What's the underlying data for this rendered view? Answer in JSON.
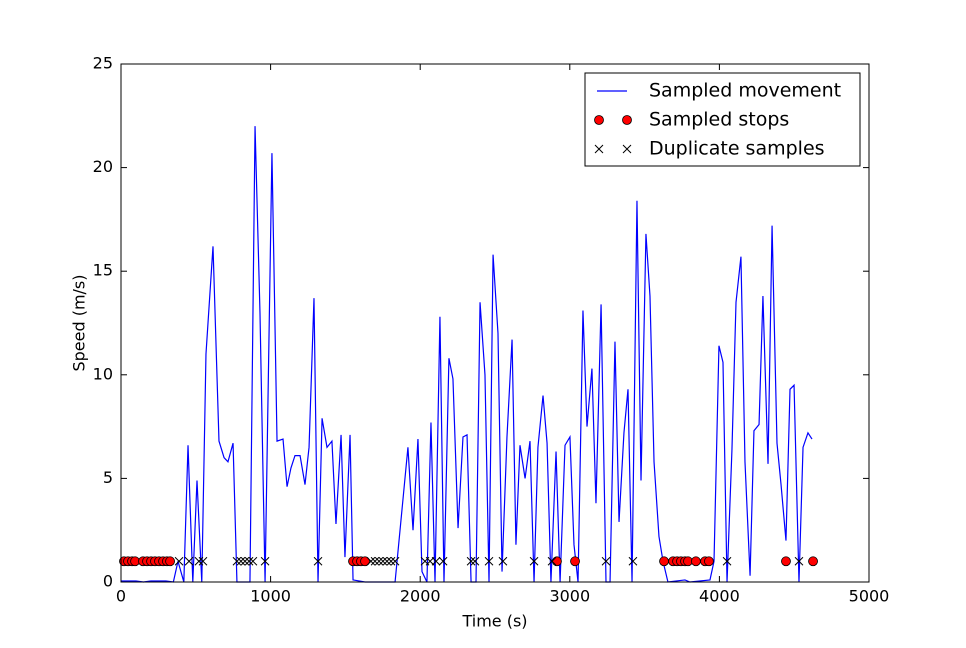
{
  "chart_data": {
    "type": "line",
    "xlabel": "Time (s)",
    "ylabel": "Speed (m/s)",
    "xlim": [
      0,
      5000
    ],
    "xticks": [
      0,
      1000,
      2000,
      3000,
      4000,
      5000
    ],
    "ylim": [
      0,
      25
    ],
    "yticks": [
      0,
      5,
      10,
      15,
      20,
      25
    ],
    "grid": false,
    "legend": "upper right",
    "series": [
      {
        "name": "Sampled movement",
        "color": "#0000ff",
        "style": "line",
        "x": [
          0,
          100,
          150,
          200,
          300,
          350,
          381,
          420,
          448,
          480,
          508,
          540,
          568,
          615,
          655,
          689,
          715,
          749,
          775,
          862,
          896,
          929,
          963,
          1009,
          1043,
          1083,
          1110,
          1136,
          1163,
          1197,
          1230,
          1257,
          1290,
          1317,
          1344,
          1377,
          1410,
          1437,
          1471,
          1497,
          1531,
          1551,
          1631,
          1832,
          1885,
          1918,
          1952,
          1985,
          2012,
          2045,
          2072,
          2099,
          2132,
          2159,
          2192,
          2219,
          2253,
          2286,
          2313,
          2340,
          2373,
          2400,
          2433,
          2460,
          2487,
          2520,
          2547,
          2580,
          2614,
          2640,
          2667,
          2701,
          2734,
          2761,
          2787,
          2821,
          2848,
          2874,
          2908,
          2935,
          2968,
          3001,
          3028,
          3055,
          3088,
          3115,
          3148,
          3175,
          3209,
          3242,
          3269,
          3302,
          3329,
          3362,
          3389,
          3416,
          3449,
          3476,
          3509,
          3536,
          3563,
          3596,
          3623,
          3656,
          3770,
          3803,
          3937,
          3964,
          3997,
          4024,
          4051,
          4084,
          4111,
          4144,
          4171,
          4205,
          4231,
          4265,
          4291,
          4325,
          4352,
          4385,
          4412,
          4445,
          4472,
          4499,
          4532,
          4559,
          4592,
          4619
        ],
        "values": [
          0.05,
          0.05,
          0,
          0.05,
          0.05,
          0,
          1,
          0,
          6.6,
          0,
          4.9,
          0,
          11,
          16.2,
          6.8,
          6,
          5.8,
          6.7,
          0,
          0,
          22,
          13,
          0,
          20.7,
          6.8,
          6.9,
          4.6,
          5.5,
          6.1,
          6.1,
          4.7,
          6.5,
          13.7,
          0,
          7.9,
          6.5,
          6.8,
          2.8,
          7.1,
          1.2,
          7.1,
          0.1,
          0,
          0,
          4,
          6.5,
          2.5,
          6.9,
          0.5,
          0,
          7.7,
          0,
          12.8,
          0,
          10.8,
          9.8,
          2.6,
          7,
          7.1,
          0,
          0,
          13.5,
          10,
          0,
          15.8,
          12,
          0.5,
          7,
          11.7,
          1.8,
          6.6,
          5,
          6.8,
          0,
          6.5,
          9,
          6.7,
          0,
          6.3,
          0,
          6.6,
          7,
          1.8,
          0,
          13.1,
          7.5,
          10.3,
          3.8,
          13.4,
          0,
          0,
          11.6,
          2.9,
          7.2,
          9.3,
          0,
          18.4,
          4.9,
          16.8,
          13.8,
          5.8,
          2.2,
          1,
          0,
          0.1,
          0,
          0.1,
          1,
          11.4,
          10.6,
          0,
          6.4,
          13.5,
          15.7,
          5.8,
          0.3,
          7.3,
          7.6,
          13.8,
          5.7,
          17.2,
          6.7,
          4.7,
          2,
          9.3,
          9.5,
          0,
          6.5,
          7.2,
          6.9
        ]
      },
      {
        "name": "Sampled stops",
        "color": "#ff0000",
        "style": "circle",
        "x": [
          20,
          47,
          74,
          94,
          147,
          174,
          201,
          227,
          254,
          281,
          307,
          328,
          1551,
          1578,
          1604,
          1631,
          2914,
          3035,
          3630,
          3690,
          3717,
          3743,
          3770,
          3790,
          3843,
          3904,
          3930,
          4445,
          4626
        ],
        "values": [
          1,
          1,
          1,
          1,
          1,
          1,
          1,
          1,
          1,
          1,
          1,
          1,
          1,
          1,
          1,
          1,
          1,
          1,
          1,
          1,
          1,
          1,
          1,
          1,
          1,
          1,
          1,
          1,
          1
        ]
      },
      {
        "name": "Duplicate samples",
        "color": "#000000",
        "style": "cross",
        "x": [
          388,
          455,
          521,
          548,
          775,
          802,
          829,
          856,
          882,
          963,
          1317,
          1671,
          1698,
          1725,
          1751,
          1778,
          1805,
          1832,
          2032,
          2066,
          2106,
          2153,
          2340,
          2366,
          2460,
          2553,
          2761,
          2881,
          3242,
          3422,
          4051,
          4532
        ],
        "values": [
          1,
          1,
          1,
          1,
          1,
          1,
          1,
          1,
          1,
          1,
          1,
          1,
          1,
          1,
          1,
          1,
          1,
          1,
          1,
          1,
          1,
          1,
          1,
          1,
          1,
          1,
          1,
          1,
          1,
          1,
          1,
          1
        ]
      }
    ]
  }
}
